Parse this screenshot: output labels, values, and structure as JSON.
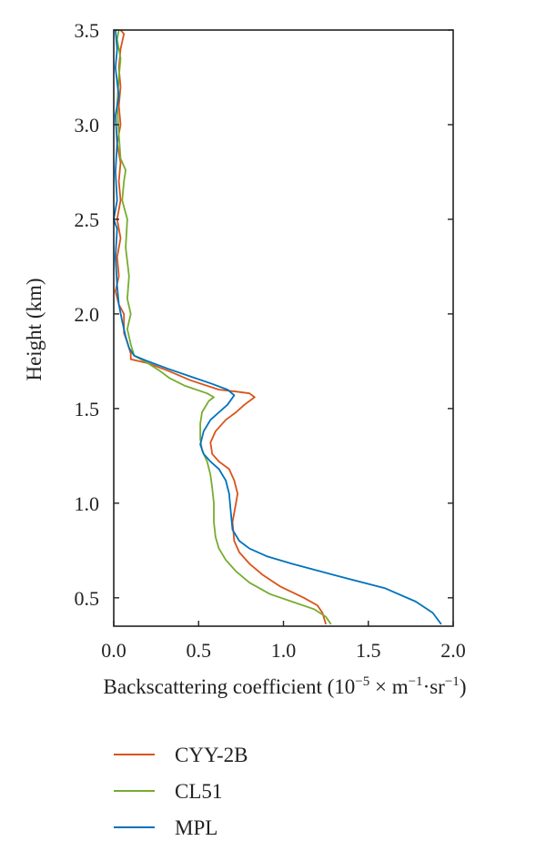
{
  "chart_data": {
    "type": "line",
    "title": "",
    "xlabel": "Backscattering coefficient (10",
    "xlabel_exponent": "−5",
    "xlabel_mid": " × m",
    "xlabel_exponent2": "−1",
    "xlabel_mid2": "·sr",
    "xlabel_exponent3": "−1",
    "xlabel_end": ")",
    "ylabel": "Height (km)",
    "xlim": [
      0.0,
      2.0
    ],
    "ylim": [
      0.35,
      3.5
    ],
    "x_ticks": [
      "0.0",
      "0.5",
      "1.0",
      "1.5",
      "2.0"
    ],
    "y_ticks": [
      "0.5",
      "1.0",
      "1.5",
      "2.0",
      "2.5",
      "3.0",
      "3.5"
    ],
    "x_tick_values": [
      0.0,
      0.5,
      1.0,
      1.5,
      2.0
    ],
    "y_tick_values": [
      0.5,
      1.0,
      1.5,
      2.0,
      2.5,
      3.0,
      3.5
    ],
    "grid": false,
    "legend_position": "bottom",
    "series": [
      {
        "name": "CYY-2B",
        "color": "#d95319",
        "points": [
          [
            1.25,
            0.36
          ],
          [
            1.23,
            0.42
          ],
          [
            1.2,
            0.46
          ],
          [
            1.12,
            0.5
          ],
          [
            0.98,
            0.56
          ],
          [
            0.88,
            0.62
          ],
          [
            0.8,
            0.68
          ],
          [
            0.74,
            0.74
          ],
          [
            0.71,
            0.8
          ],
          [
            0.7,
            0.9
          ],
          [
            0.72,
            1.0
          ],
          [
            0.73,
            1.05
          ],
          [
            0.71,
            1.12
          ],
          [
            0.68,
            1.18
          ],
          [
            0.62,
            1.22
          ],
          [
            0.58,
            1.26
          ],
          [
            0.57,
            1.32
          ],
          [
            0.6,
            1.38
          ],
          [
            0.66,
            1.44
          ],
          [
            0.72,
            1.48
          ],
          [
            0.77,
            1.52
          ],
          [
            0.83,
            1.56
          ],
          [
            0.8,
            1.58
          ],
          [
            0.72,
            1.59
          ],
          [
            0.62,
            1.6
          ],
          [
            0.45,
            1.65
          ],
          [
            0.32,
            1.7
          ],
          [
            0.2,
            1.74
          ],
          [
            0.1,
            1.76
          ],
          [
            0.1,
            1.79
          ],
          [
            0.08,
            1.85
          ],
          [
            0.06,
            1.9
          ],
          [
            0.06,
            2.0
          ],
          [
            0.03,
            2.05
          ],
          [
            0.01,
            2.12
          ],
          [
            0.03,
            2.2
          ],
          [
            0.02,
            2.3
          ],
          [
            0.04,
            2.4
          ],
          [
            0.02,
            2.5
          ],
          [
            0.04,
            2.6
          ],
          [
            0.03,
            2.7
          ],
          [
            0.04,
            2.8
          ],
          [
            0.02,
            2.9
          ],
          [
            0.04,
            3.0
          ],
          [
            0.03,
            3.1
          ],
          [
            0.04,
            3.2
          ],
          [
            0.03,
            3.3
          ],
          [
            0.04,
            3.4
          ],
          [
            0.06,
            3.48
          ],
          [
            0.04,
            3.5
          ]
        ]
      },
      {
        "name": "CL51",
        "color": "#77ac30",
        "points": [
          [
            1.28,
            0.36
          ],
          [
            1.25,
            0.4
          ],
          [
            1.18,
            0.44
          ],
          [
            1.05,
            0.48
          ],
          [
            0.92,
            0.52
          ],
          [
            0.8,
            0.58
          ],
          [
            0.72,
            0.64
          ],
          [
            0.66,
            0.7
          ],
          [
            0.62,
            0.76
          ],
          [
            0.6,
            0.82
          ],
          [
            0.59,
            0.9
          ],
          [
            0.59,
            1.0
          ],
          [
            0.58,
            1.08
          ],
          [
            0.57,
            1.15
          ],
          [
            0.55,
            1.22
          ],
          [
            0.52,
            1.28
          ],
          [
            0.51,
            1.34
          ],
          [
            0.51,
            1.42
          ],
          [
            0.52,
            1.48
          ],
          [
            0.56,
            1.54
          ],
          [
            0.59,
            1.56
          ],
          [
            0.55,
            1.58
          ],
          [
            0.42,
            1.62
          ],
          [
            0.33,
            1.66
          ],
          [
            0.27,
            1.7
          ],
          [
            0.2,
            1.74
          ],
          [
            0.12,
            1.78
          ],
          [
            0.1,
            1.84
          ],
          [
            0.08,
            1.92
          ],
          [
            0.1,
            2.0
          ],
          [
            0.08,
            2.08
          ],
          [
            0.09,
            2.2
          ],
          [
            0.07,
            2.35
          ],
          [
            0.08,
            2.5
          ],
          [
            0.05,
            2.6
          ],
          [
            0.06,
            2.7
          ],
          [
            0.07,
            2.76
          ],
          [
            0.04,
            2.82
          ],
          [
            0.03,
            2.95
          ],
          [
            0.02,
            3.1
          ],
          [
            0.03,
            3.25
          ],
          [
            0.04,
            3.35
          ],
          [
            0.02,
            3.45
          ],
          [
            0.03,
            3.5
          ]
        ]
      },
      {
        "name": "MPL",
        "color": "#0072bd",
        "points": [
          [
            1.93,
            0.36
          ],
          [
            1.88,
            0.42
          ],
          [
            1.78,
            0.48
          ],
          [
            1.6,
            0.55
          ],
          [
            1.3,
            0.62
          ],
          [
            1.05,
            0.68
          ],
          [
            0.9,
            0.72
          ],
          [
            0.8,
            0.76
          ],
          [
            0.74,
            0.8
          ],
          [
            0.7,
            0.86
          ],
          [
            0.69,
            0.95
          ],
          [
            0.68,
            1.05
          ],
          [
            0.66,
            1.12
          ],
          [
            0.62,
            1.18
          ],
          [
            0.57,
            1.22
          ],
          [
            0.53,
            1.26
          ],
          [
            0.51,
            1.31
          ],
          [
            0.53,
            1.38
          ],
          [
            0.57,
            1.44
          ],
          [
            0.62,
            1.48
          ],
          [
            0.67,
            1.52
          ],
          [
            0.71,
            1.57
          ],
          [
            0.67,
            1.6
          ],
          [
            0.58,
            1.63
          ],
          [
            0.45,
            1.67
          ],
          [
            0.32,
            1.71
          ],
          [
            0.2,
            1.75
          ],
          [
            0.12,
            1.78
          ],
          [
            0.09,
            1.82
          ],
          [
            0.07,
            1.88
          ],
          [
            0.05,
            1.96
          ],
          [
            0.03,
            2.05
          ],
          [
            0.02,
            2.15
          ],
          [
            0.01,
            2.3
          ],
          [
            0.02,
            2.45
          ],
          [
            0.0,
            2.5
          ],
          [
            0.02,
            2.6
          ],
          [
            0.01,
            2.75
          ],
          [
            0.02,
            2.9
          ],
          [
            0.01,
            3.05
          ],
          [
            0.03,
            3.15
          ],
          [
            0.01,
            3.3
          ],
          [
            0.02,
            3.4
          ],
          [
            0.01,
            3.5
          ]
        ]
      }
    ]
  }
}
